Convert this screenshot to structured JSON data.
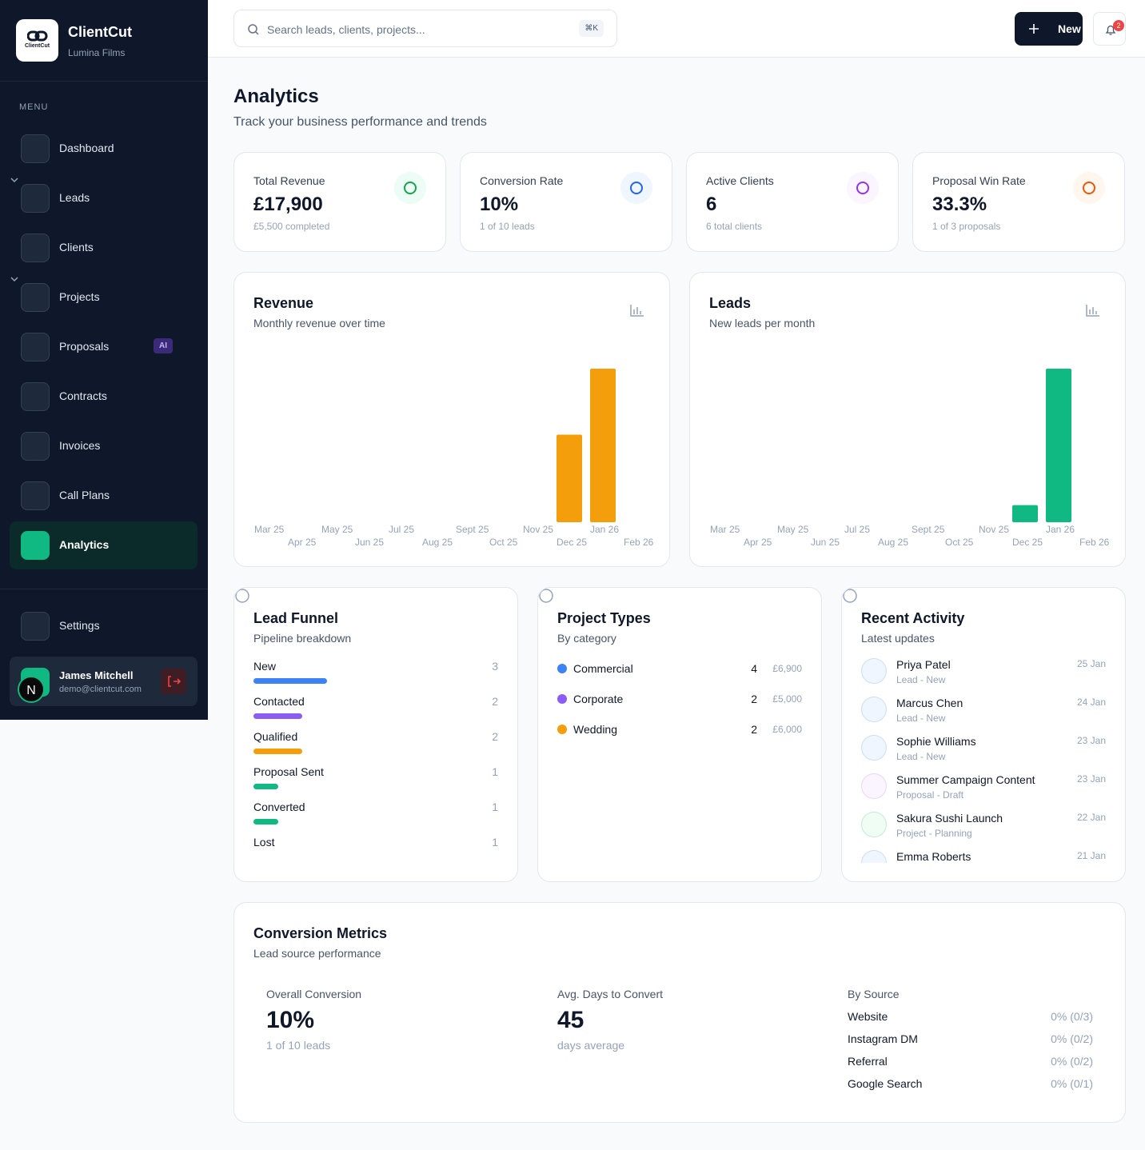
{
  "sidebar": {
    "brand": "ClientCut",
    "logo_text": "ClientCut",
    "workspace": "Lumina Films",
    "menu_label": "MENU",
    "items": [
      {
        "label": "Dashboard"
      },
      {
        "label": "Leads",
        "submenu": true
      },
      {
        "label": "Clients"
      },
      {
        "label": "Projects",
        "submenu": true
      },
      {
        "label": "Proposals",
        "badge": "AI"
      },
      {
        "label": "Contracts"
      },
      {
        "label": "Invoices"
      },
      {
        "label": "Call Plans"
      },
      {
        "label": "Analytics",
        "active": true
      }
    ],
    "settings": "Settings",
    "user": {
      "name": "James Mitchell",
      "email": "demo@clientcut.com",
      "avatar": "N"
    }
  },
  "header": {
    "search_placeholder": "Search leads, clients, projects...",
    "shortcut": "⌘K",
    "new_button": "New",
    "notifications": 2
  },
  "page": {
    "title": "Analytics",
    "subtitle": "Track your business performance and trends"
  },
  "stats": [
    {
      "label": "Total Revenue",
      "value": "£17,900",
      "sub": "£5,500 completed",
      "color": "#16a34a",
      "bg": "#ecfdf5"
    },
    {
      "label": "Conversion Rate",
      "value": "10%",
      "sub": "1 of 10 leads",
      "color": "#2563eb",
      "bg": "#eff6ff"
    },
    {
      "label": "Active Clients",
      "value": "6",
      "sub": "6 total clients",
      "color": "#9333ea",
      "bg": "#faf5ff"
    },
    {
      "label": "Proposal Win Rate",
      "value": "33.3%",
      "sub": "1 of 3 proposals",
      "color": "#ea580c",
      "bg": "#fff7ed"
    }
  ],
  "chart_data": [
    {
      "type": "bar",
      "title": "Revenue",
      "subtitle": "Monthly revenue over time",
      "color": "#f59e0b",
      "categories": [
        "Mar 25",
        "Apr 25",
        "May 25",
        "Jun 25",
        "Jul 25",
        "Aug 25",
        "Sept 25",
        "Oct 25",
        "Nov 25",
        "Dec 25",
        "Jan 26",
        "Feb 26"
      ],
      "values": [
        0,
        0,
        0,
        0,
        0,
        0,
        0,
        0,
        0,
        6500,
        11400,
        0
      ]
    },
    {
      "type": "bar",
      "title": "Leads",
      "subtitle": "New leads per month",
      "color": "#10b981",
      "categories": [
        "Mar 25",
        "Apr 25",
        "May 25",
        "Jun 25",
        "Jul 25",
        "Aug 25",
        "Sept 25",
        "Oct 25",
        "Nov 25",
        "Dec 25",
        "Jan 26",
        "Feb 26"
      ],
      "values": [
        0,
        0,
        0,
        0,
        0,
        0,
        0,
        0,
        0,
        1,
        9,
        0
      ]
    }
  ],
  "funnel": {
    "title": "Lead Funnel",
    "subtitle": "Pipeline breakdown",
    "stages": [
      {
        "name": "New",
        "count": 3,
        "color": "#3b82f6"
      },
      {
        "name": "Contacted",
        "count": 2,
        "color": "#8b5cf6"
      },
      {
        "name": "Qualified",
        "count": 2,
        "color": "#f59e0b"
      },
      {
        "name": "Proposal Sent",
        "count": 1,
        "color": "#10b981"
      },
      {
        "name": "Converted",
        "count": 1,
        "color": "#10b981"
      },
      {
        "name": "Lost",
        "count": 1
      }
    ]
  },
  "project_types": {
    "title": "Project Types",
    "subtitle": "By category",
    "items": [
      {
        "name": "Commercial",
        "color": "#3b82f6",
        "count": 4,
        "amount": "£6,900"
      },
      {
        "name": "Corporate",
        "color": "#8b5cf6",
        "count": 2,
        "amount": "£5,000"
      },
      {
        "name": "Wedding",
        "color": "#f59e0b",
        "count": 2,
        "amount": "£6,000"
      }
    ]
  },
  "activity": {
    "title": "Recent Activity",
    "subtitle": "Latest updates",
    "items": [
      {
        "name": "Priya Patel",
        "sub": "Lead - New",
        "date": "25 Jan",
        "color": "#3b82f6",
        "bg": "#eff6ff"
      },
      {
        "name": "Marcus Chen",
        "sub": "Lead - New",
        "date": "24 Jan",
        "color": "#3b82f6",
        "bg": "#eff6ff"
      },
      {
        "name": "Sophie Williams",
        "sub": "Lead - New",
        "date": "23 Jan",
        "color": "#3b82f6",
        "bg": "#eff6ff"
      },
      {
        "name": "Summer Campaign Content",
        "sub": "Proposal - Draft",
        "date": "23 Jan",
        "color": "#a855f7",
        "bg": "#faf5ff"
      },
      {
        "name": "Sakura Sushi Launch",
        "sub": "Project - Planning",
        "date": "22 Jan",
        "color": "#16a34a",
        "bg": "#f0fdf4"
      },
      {
        "name": "Emma Roberts",
        "date": "21 Jan",
        "color": "#3b82f6",
        "bg": "#eff6ff"
      }
    ]
  },
  "conversion": {
    "title": "Conversion Metrics",
    "subtitle": "Lead source performance",
    "metrics": [
      {
        "label": "Overall Conversion",
        "value": "10%",
        "sub": "1 of 10 leads"
      },
      {
        "label": "Avg. Days to Convert",
        "value": "45",
        "sub": "days average"
      }
    ],
    "sources_title": "By Source",
    "sources": [
      {
        "name": "Website",
        "value": "0% (0/3)"
      },
      {
        "name": "Instagram DM",
        "value": "0% (0/2)"
      },
      {
        "name": "Referral",
        "value": "0% (0/2)"
      },
      {
        "name": "Google Search",
        "value": "0% (0/1)"
      }
    ]
  }
}
